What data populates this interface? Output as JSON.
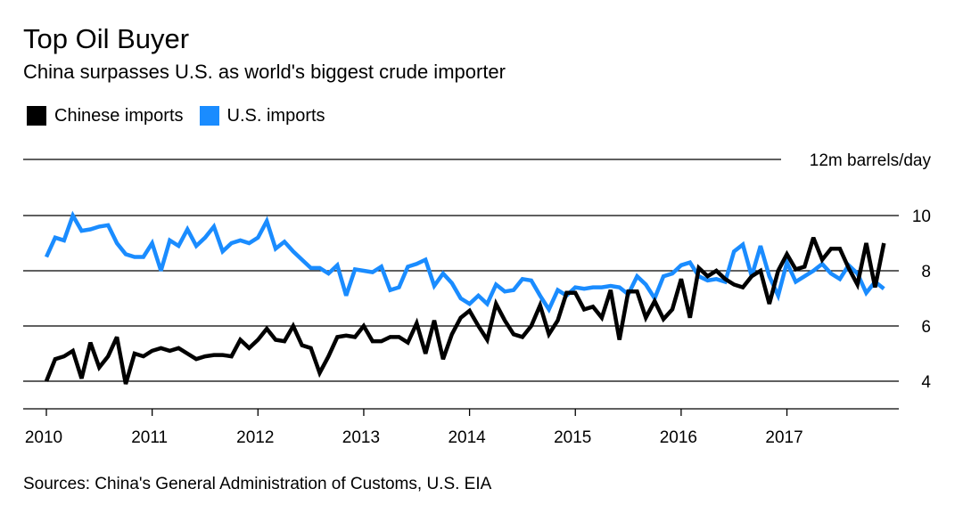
{
  "title": "Top Oil Buyer",
  "subtitle": "China surpasses U.S. as world's biggest crude importer",
  "legend": [
    {
      "label": "Chinese imports",
      "color": "#000000"
    },
    {
      "label": "U.S. imports",
      "color": "#1a8cff"
    }
  ],
  "source": "Sources: China's General Administration of Customs, U.S. EIA",
  "chart_data": {
    "type": "line",
    "title": "Top Oil Buyer",
    "unit_label": "12m barrels/day",
    "xlabel": "",
    "ylabel": "million barrels/day",
    "ylim": [
      3,
      12
    ],
    "yticks": [
      4,
      6,
      8,
      10
    ],
    "xlim": [
      2010,
      2017.99
    ],
    "xticks": [
      "2010",
      "2011",
      "2012",
      "2013",
      "2014",
      "2015",
      "2016",
      "2017"
    ],
    "grid": true,
    "x_start": 2010,
    "x_step_months": 1,
    "series": [
      {
        "name": "Chinese imports",
        "color": "#000000",
        "values": [
          4.0,
          4.8,
          4.9,
          5.1,
          4.1,
          5.4,
          4.5,
          4.9,
          5.6,
          3.9,
          5.0,
          4.9,
          5.1,
          5.2,
          5.1,
          5.2,
          5.0,
          4.8,
          4.9,
          4.95,
          4.95,
          4.9,
          5.5,
          5.2,
          5.5,
          5.9,
          5.5,
          5.45,
          6.0,
          5.3,
          5.2,
          4.3,
          4.9,
          5.6,
          5.65,
          5.6,
          6.0,
          5.45,
          5.45,
          5.6,
          5.6,
          5.4,
          6.1,
          5.0,
          6.2,
          4.8,
          5.7,
          6.3,
          6.55,
          6.0,
          5.5,
          6.8,
          6.2,
          5.7,
          5.6,
          6.0,
          6.75,
          5.7,
          6.2,
          7.2,
          7.2,
          6.6,
          6.7,
          6.3,
          7.3,
          5.5,
          7.25,
          7.25,
          6.3,
          6.9,
          6.25,
          6.6,
          7.7,
          6.3,
          8.1,
          7.8,
          8.0,
          7.7,
          7.5,
          7.4,
          7.8,
          8.0,
          6.8,
          8.0,
          8.6,
          8.05,
          8.15,
          9.2,
          8.4,
          8.8,
          8.8,
          8.1,
          7.5,
          9.0,
          7.4,
          9.0
        ]
      },
      {
        "name": "U.S. imports",
        "color": "#1a8cff",
        "values": [
          8.5,
          9.2,
          9.1,
          10.0,
          9.45,
          9.5,
          9.6,
          9.65,
          9.0,
          8.6,
          8.5,
          8.5,
          9.0,
          8.0,
          9.1,
          8.9,
          9.5,
          8.9,
          9.2,
          9.6,
          8.7,
          9.0,
          9.1,
          9.0,
          9.2,
          9.8,
          8.8,
          9.05,
          8.7,
          8.4,
          8.1,
          8.1,
          7.9,
          8.2,
          7.1,
          8.05,
          8.0,
          7.95,
          8.15,
          7.3,
          7.4,
          8.15,
          8.25,
          8.4,
          7.45,
          7.9,
          7.55,
          7.0,
          6.8,
          7.1,
          6.8,
          7.5,
          7.25,
          7.3,
          7.7,
          7.65,
          7.1,
          6.6,
          7.3,
          7.1,
          7.4,
          7.35,
          7.4,
          7.4,
          7.45,
          7.4,
          7.15,
          7.8,
          7.5,
          7.0,
          7.8,
          7.9,
          8.2,
          8.3,
          7.8,
          7.65,
          7.7,
          7.6,
          8.7,
          8.95,
          7.8,
          8.9,
          7.8,
          7.1,
          8.3,
          7.6,
          7.8,
          8.0,
          8.25,
          7.9,
          7.7,
          8.2,
          7.9,
          7.2,
          7.6,
          7.35
        ]
      }
    ]
  }
}
